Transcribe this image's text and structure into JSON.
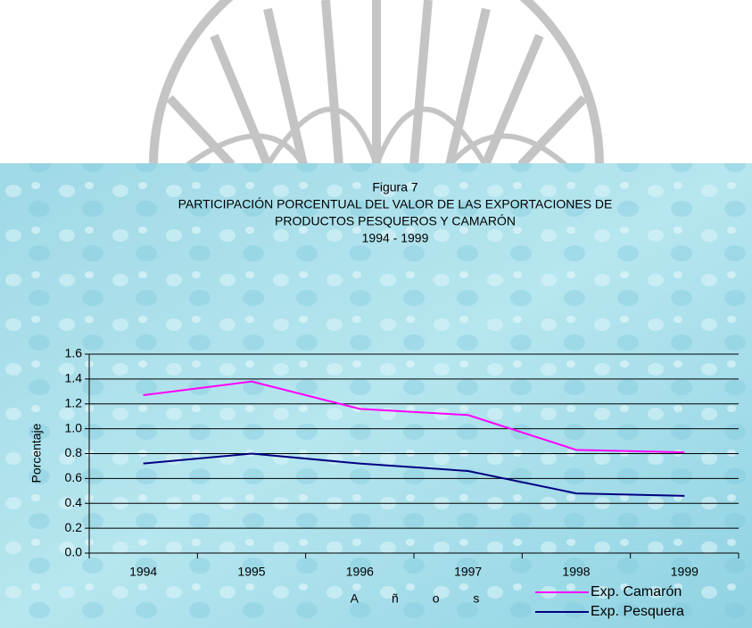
{
  "chart_data": {
    "type": "line",
    "title": [
      "Figura 7",
      "PARTICIPACIÓN PORCENTUAL DEL VALOR DE LAS EXPORTACIONES DE",
      "PRODUCTOS PESQUEROS Y CAMARÓN",
      "1994 - 1999"
    ],
    "x_label": "A ñ o s",
    "y_label": "Porcentaje",
    "categories": [
      "1994",
      "1995",
      "1996",
      "1997",
      "1998",
      "1999"
    ],
    "series": [
      {
        "name": "Exp. Camarón",
        "color": "#ff00ff",
        "values": [
          1.27,
          1.38,
          1.16,
          1.11,
          0.83,
          0.81
        ]
      },
      {
        "name": "Exp. Pesquera",
        "color": "#000080",
        "values": [
          0.72,
          0.8,
          0.72,
          0.66,
          0.48,
          0.46
        ]
      }
    ],
    "ylim": [
      0,
      1.6
    ],
    "yticks": [
      {
        "value": 0,
        "label": "0.0"
      },
      0.2,
      0.4,
      0.6,
      0.8,
      {
        "value": 1,
        "label": "1.0"
      },
      1.2,
      1.4,
      1.6
    ],
    "grid": true,
    "legend": "bottom-right"
  }
}
